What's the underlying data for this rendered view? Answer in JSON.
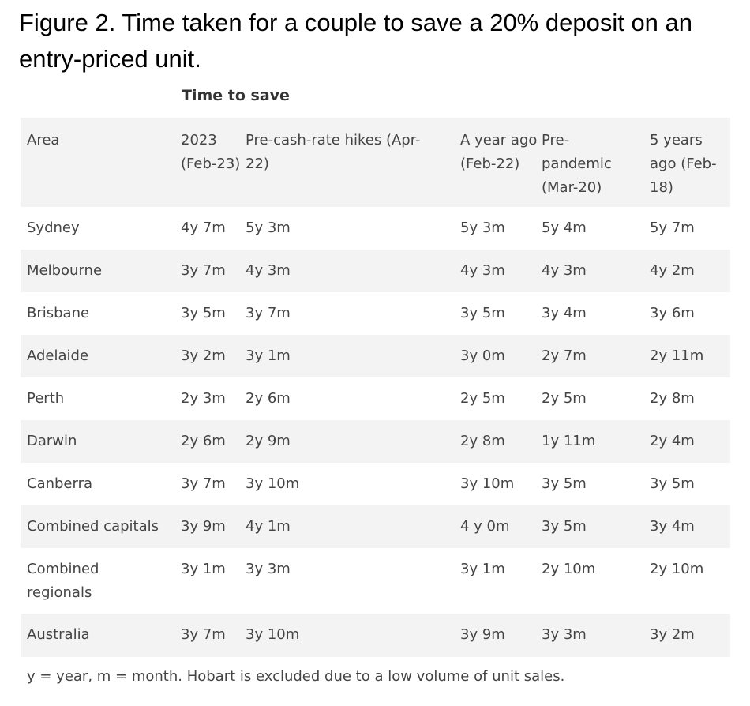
{
  "title": "Figure 2. Time taken for a couple to save a 20% deposit on an entry-priced unit.",
  "subheading": "Time to save",
  "columns": [
    "Area",
    "2023 (Feb-23)",
    "Pre-cash-rate hikes (Apr-22)",
    "A year ago (Feb-22)",
    "Pre-pandemic (Mar-20)",
    "5 years ago (Feb-18)"
  ],
  "rows": [
    [
      "Sydney",
      "4y 7m",
      "5y 3m",
      "5y 3m",
      "5y 4m",
      "5y 7m"
    ],
    [
      "Melbourne",
      "3y 7m",
      "4y 3m",
      "4y 3m",
      "4y 3m",
      "4y 2m"
    ],
    [
      "Brisbane",
      "3y 5m",
      "3y 7m",
      "3y 5m",
      "3y 4m",
      "3y 6m"
    ],
    [
      "Adelaide",
      "3y 2m",
      "3y 1m",
      "3y 0m",
      "2y 7m",
      "2y 11m"
    ],
    [
      "Perth",
      "2y 3m",
      "2y 6m",
      "2y 5m",
      "2y 5m",
      "2y 8m"
    ],
    [
      "Darwin",
      "2y 6m",
      "2y 9m",
      "2y 8m",
      "1y 11m",
      "2y 4m"
    ],
    [
      "Canberra",
      "3y 7m",
      "3y 10m",
      "3y 10m",
      "3y 5m",
      "3y 5m"
    ],
    [
      "Combined capitals",
      "3y 9m",
      "4y 1m",
      "4 y 0m",
      "3y 5m",
      "3y 4m"
    ],
    [
      "Combined regionals",
      "3y 1m",
      "3y 3m",
      "3y 1m",
      "2y 10m",
      "2y 10m"
    ],
    [
      "Australia",
      "3y 7m",
      "3y 10m",
      "3y 9m",
      "3y 3m",
      "3y 2m"
    ]
  ],
  "footnote": "y = year, m = month. Hobart is excluded due to a low volume of unit sales."
}
